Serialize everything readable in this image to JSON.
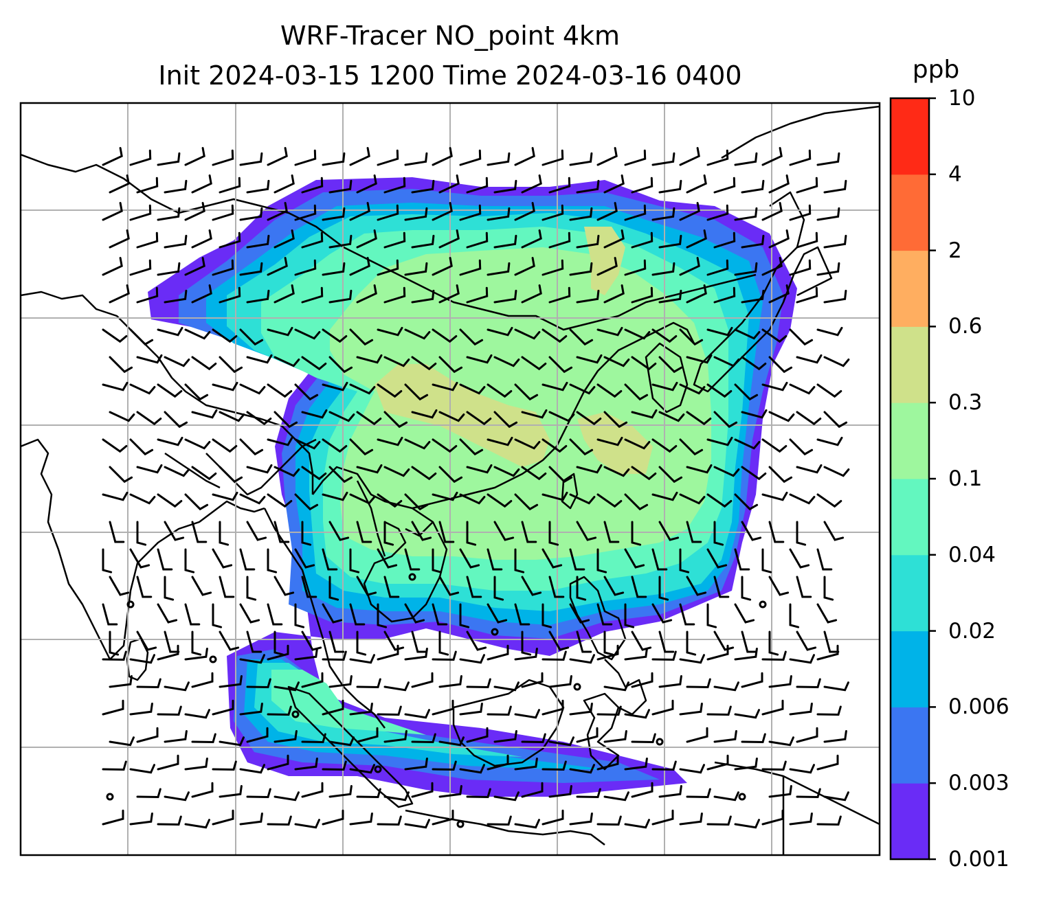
{
  "title": {
    "line1": "WRF-Tracer NO_point 4km",
    "line2": "Init 2024-03-15 1200 Time 2024-03-16 0400"
  },
  "colorbar": {
    "unit": "ppb",
    "levels": [
      "0.001",
      "0.003",
      "0.006",
      "0.02",
      "0.04",
      "0.1",
      "0.3",
      "0.6",
      "2",
      "4",
      "10"
    ],
    "colors": [
      "#6a2cf6",
      "#3b76f2",
      "#00b3e8",
      "#2ee0d6",
      "#63f7bf",
      "#9ef79e",
      "#cfe18a",
      "#ffae60",
      "#ff6b36",
      "#ff2a16"
    ]
  },
  "map": {
    "field": "NO_point tracer concentration",
    "grid_color": "#b0b0b0",
    "coastline_color": "#000000"
  }
}
